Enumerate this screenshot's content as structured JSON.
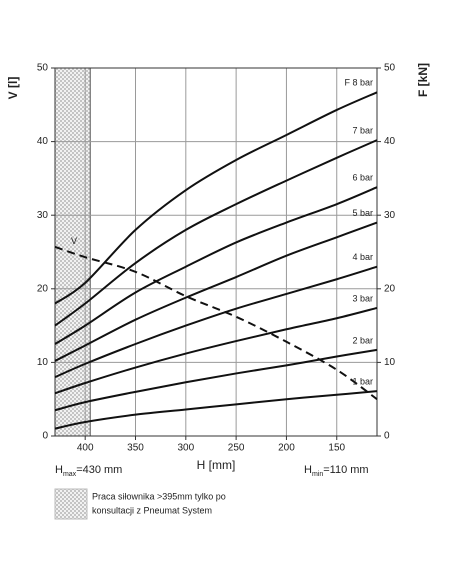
{
  "chart_data": {
    "type": "line",
    "y_label": "V [l]",
    "y2_label": "F [kN]",
    "x_label": "H [mm]",
    "h_max_label": {
      "main": "H",
      "sub": "max",
      "rest": "=430 mm"
    },
    "h_min_label": {
      "main": "H",
      "sub": "min",
      "rest": "=110 mm"
    },
    "note_lines": [
      "Praca siłownika >395mm tylko po",
      "konsultacji z Pneumat System"
    ],
    "shaded_xrange": [
      430,
      395
    ],
    "x": [
      430,
      400,
      350,
      300,
      250,
      200,
      150,
      110
    ],
    "xlim": [
      430,
      110
    ],
    "xticks": [
      400,
      350,
      300,
      250,
      200,
      150
    ],
    "ylim": [
      0,
      50
    ],
    "yticks": [
      0,
      10,
      20,
      30,
      40,
      50
    ],
    "y2lim": [
      0,
      50
    ],
    "y2ticks": [
      0,
      10,
      20,
      30,
      40,
      50
    ],
    "grid": true,
    "series": [
      {
        "name": "V",
        "color": "#111111",
        "line_style": "dashed",
        "axis": "y",
        "values": [
          25.7,
          24.3,
          22.3,
          19,
          16.2,
          12.8,
          9,
          5
        ]
      },
      {
        "name": "F 8 bar",
        "color": "#111111",
        "axis": "y2",
        "values": [
          18,
          20.8,
          28,
          33.4,
          37.5,
          40.9,
          44.3,
          46.7
        ]
      },
      {
        "name": "7 bar",
        "color": "#111111",
        "axis": "y2",
        "values": [
          15,
          18,
          23.5,
          28,
          31.5,
          34.7,
          37.8,
          40.2
        ]
      },
      {
        "name": "6 bar",
        "color": "#111111",
        "axis": "y2",
        "values": [
          12.5,
          15,
          19.5,
          23,
          26.3,
          29,
          31.5,
          33.8
        ]
      },
      {
        "name": "5 bar",
        "color": "#111111",
        "axis": "y2",
        "values": [
          10.2,
          12.3,
          15.8,
          18.8,
          21.6,
          24.5,
          27,
          29
        ]
      },
      {
        "name": "4 bar",
        "color": "#111111",
        "axis": "y2",
        "values": [
          8,
          9.8,
          12.5,
          15,
          17.3,
          19.3,
          21.3,
          23
        ]
      },
      {
        "name": "3 bar",
        "color": "#111111",
        "axis": "y2",
        "values": [
          5.8,
          7.2,
          9.3,
          11.2,
          12.9,
          14.5,
          16,
          17.4
        ]
      },
      {
        "name": "2 bar",
        "color": "#111111",
        "axis": "y2",
        "values": [
          3.5,
          4.6,
          6,
          7.3,
          8.5,
          9.6,
          10.8,
          11.7
        ]
      },
      {
        "name": "1 bar",
        "color": "#111111",
        "axis": "y2",
        "values": [
          1,
          1.9,
          2.9,
          3.6,
          4.3,
          5,
          5.6,
          6.1
        ]
      }
    ]
  }
}
